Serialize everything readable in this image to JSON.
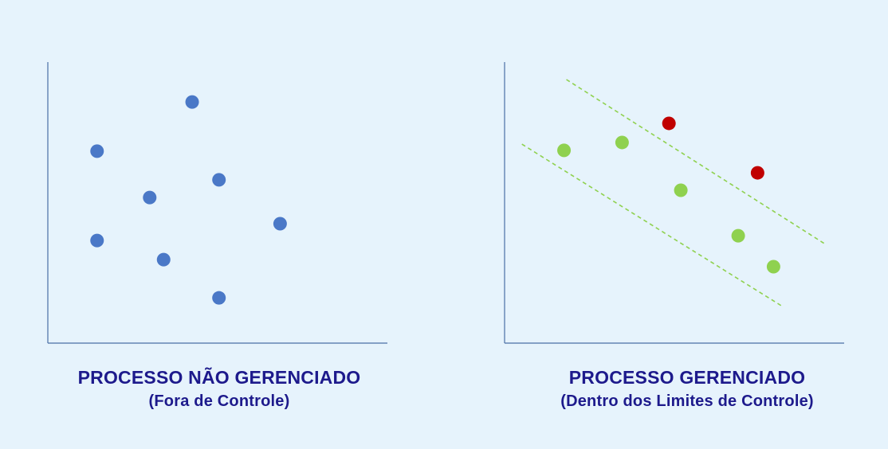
{
  "colors": {
    "background": "#e6f3fc",
    "axis": "#4a6fa5",
    "caption": "#1d1a8c",
    "point_blue": "#4a78c7",
    "point_green": "#8fd14f",
    "point_red": "#c00000",
    "limit_line": "#8fd14f"
  },
  "chart_data": [
    {
      "type": "scatter",
      "title": "PROCESSO NÃO GERENCIADO",
      "subtitle": "(Fora de Controle)",
      "xlabel": "",
      "ylabel": "",
      "xlim": [
        0,
        100
      ],
      "ylim": [
        0,
        100
      ],
      "grid": false,
      "series": [
        {
          "color": "#4a78c7",
          "points": [
            {
              "x": 14.5,
              "y": 68.3
            },
            {
              "x": 30.0,
              "y": 51.8
            },
            {
              "x": 42.5,
              "y": 85.8
            },
            {
              "x": 50.4,
              "y": 58.1
            },
            {
              "x": 14.5,
              "y": 36.5
            },
            {
              "x": 34.1,
              "y": 29.7
            },
            {
              "x": 68.4,
              "y": 42.5
            },
            {
              "x": 50.4,
              "y": 16.1
            }
          ]
        }
      ]
    },
    {
      "type": "scatter",
      "title": "PROCESSO GERENCIADO",
      "subtitle": "(Dentro dos Limites de Controle)",
      "xlabel": "",
      "ylabel": "",
      "xlim": [
        0,
        100
      ],
      "ylim": [
        0,
        100
      ],
      "grid": false,
      "series": [
        {
          "color": "#8fd14f",
          "points": [
            {
              "x": 17.5,
              "y": 68.6
            },
            {
              "x": 34.6,
              "y": 71.4
            },
            {
              "x": 51.9,
              "y": 54.4
            },
            {
              "x": 68.8,
              "y": 38.2
            },
            {
              "x": 79.2,
              "y": 27.2
            }
          ]
        },
        {
          "color": "#c00000",
          "points": [
            {
              "x": 48.4,
              "y": 78.2
            },
            {
              "x": 74.5,
              "y": 60.6
            }
          ]
        }
      ],
      "limit_lines": [
        {
          "color": "#8fd14f",
          "from": {
            "x": 18.2,
            "y": 93.8
          },
          "to": {
            "x": 94.6,
            "y": 35.1
          }
        },
        {
          "color": "#8fd14f",
          "from": {
            "x": 5.1,
            "y": 70.8
          },
          "to": {
            "x": 81.5,
            "y": 13.3
          }
        }
      ]
    }
  ]
}
